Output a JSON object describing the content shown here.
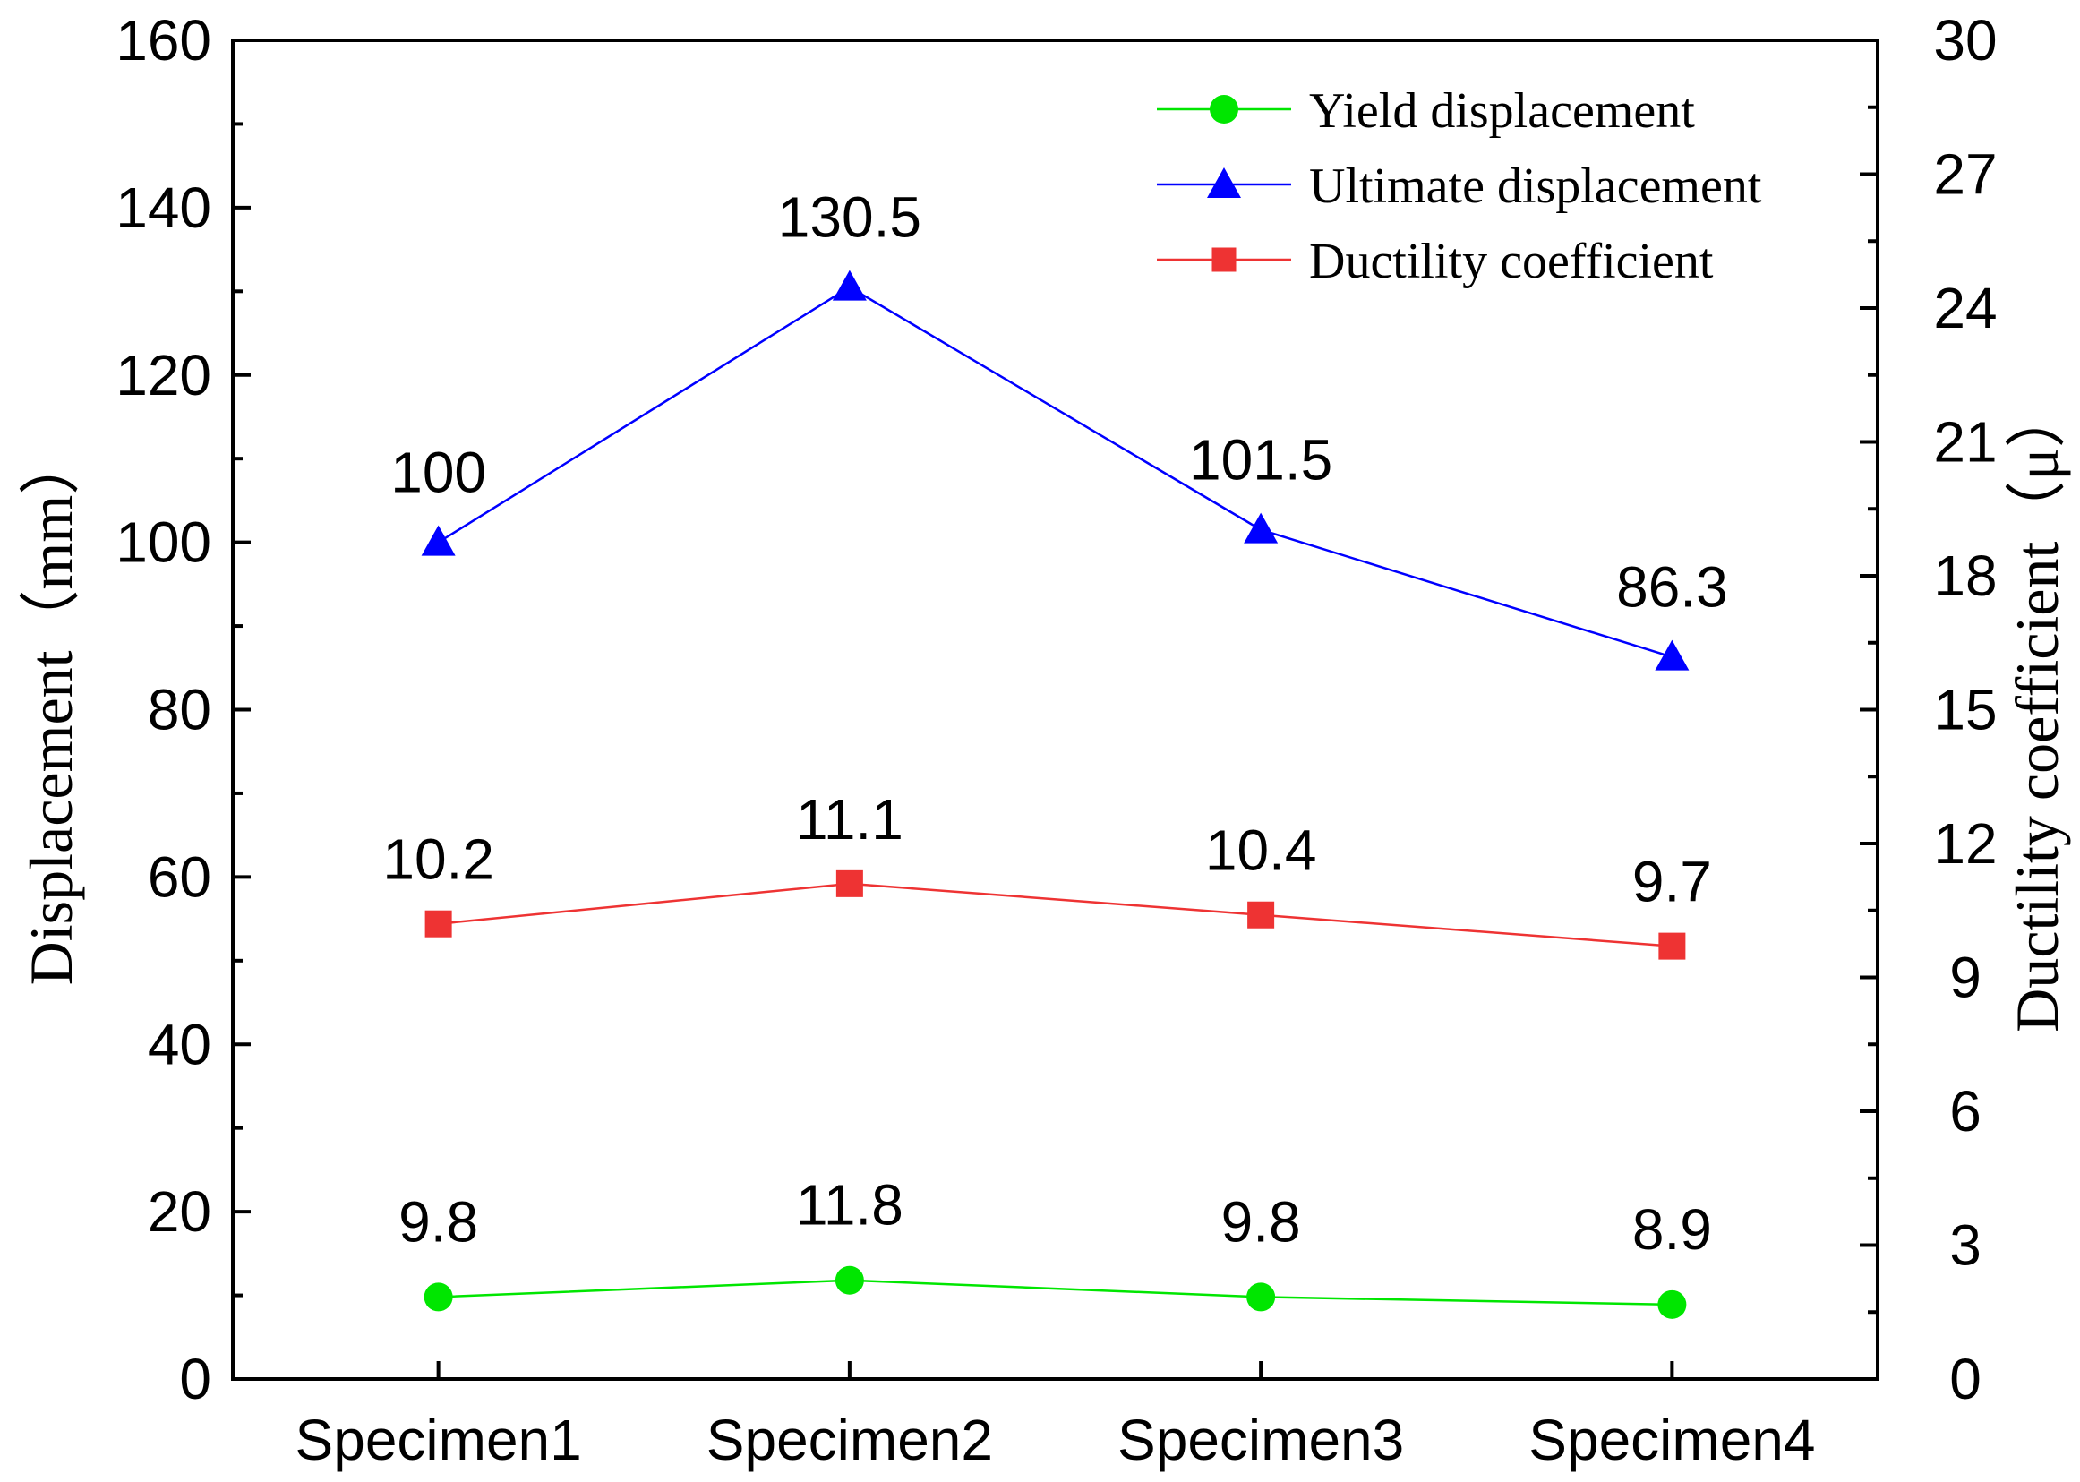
{
  "chart_data": {
    "type": "line",
    "categories": [
      "Specimen1",
      "Specimen2",
      "Specimen3",
      "Specimen4"
    ],
    "left_axis": {
      "label": "Displacement（mm）",
      "range": [
        0,
        160
      ],
      "ticks": [
        "0",
        "20",
        "40",
        "60",
        "80",
        "100",
        "120",
        "140",
        "160"
      ]
    },
    "right_axis": {
      "label": "Ductility coefficient（μ）",
      "range": [
        0,
        30
      ],
      "ticks": [
        "0",
        "3",
        "6",
        "9",
        "12",
        "15",
        "18",
        "21",
        "24",
        "27",
        "30"
      ]
    },
    "series": [
      {
        "name": "Yield displacement",
        "axis": "left",
        "color": "#00e600",
        "marker": "circle",
        "values": [
          9.8,
          11.8,
          9.8,
          8.9
        ],
        "labels": [
          "9.8",
          "11.8",
          "9.8",
          "8.9"
        ]
      },
      {
        "name": "Ultimate displacement",
        "axis": "left",
        "color": "#0000ff",
        "marker": "triangle",
        "values": [
          100,
          130.5,
          101.5,
          86.3
        ],
        "labels": [
          "100",
          "130.5",
          "101.5",
          "86.3"
        ]
      },
      {
        "name": "Ductility coefficient",
        "axis": "right",
        "color": "#ee3333",
        "marker": "square",
        "values": [
          10.2,
          11.1,
          10.4,
          9.7
        ],
        "labels": [
          "10.2",
          "11.1",
          "10.4",
          "9.7"
        ]
      }
    ],
    "legend": "top-right",
    "grid": false
  }
}
